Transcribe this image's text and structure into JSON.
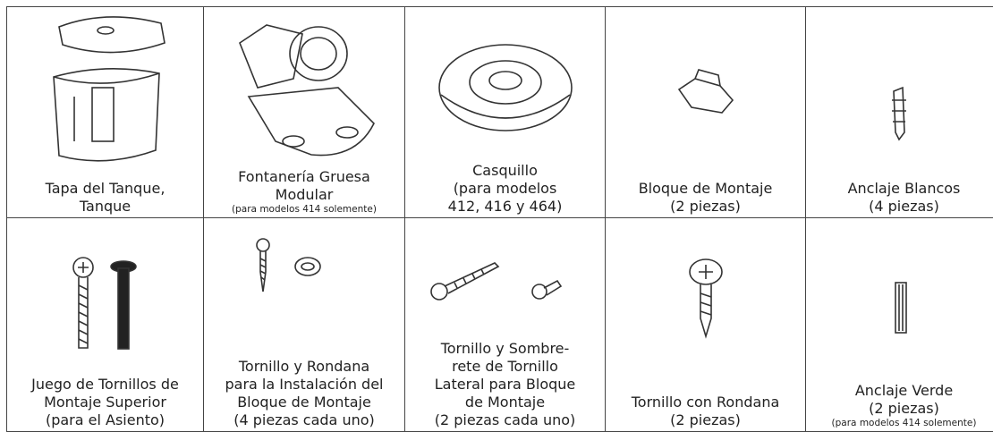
{
  "table": {
    "rows": [
      [
        {
          "lines": [
            "Tapa del Tanque,",
            "Tanque"
          ]
        },
        {
          "lines": [
            "Fontanería Gruesa",
            "Modular"
          ],
          "note": "(para modelos 414 solemente)"
        },
        {
          "lines": [
            "Casquillo",
            "(para modelos",
            "412, 416 y 464)"
          ]
        },
        {
          "lines": [
            "Bloque de Montaje",
            "(2 piezas)"
          ]
        },
        {
          "lines": [
            "Anclaje Blancos",
            "(4 piezas)"
          ]
        }
      ],
      [
        {
          "lines": [
            "Juego de Tornillos de",
            "Montaje Superior",
            "(para el Asiento)"
          ]
        },
        {
          "lines": [
            "Tornillo y Rondana",
            "para la Instalación del",
            "Bloque de Montaje",
            "(4 piezas cada uno)"
          ]
        },
        {
          "lines": [
            "Tornillo y Sombre-",
            "rete de Tornillo",
            "Lateral para Bloque",
            "de Montaje",
            "(2 piezas cada uno)"
          ]
        },
        {
          "lines": [
            "Tornillo con Rondana",
            "(2 piezas)"
          ]
        },
        {
          "lines": [
            "Anclaje Verde",
            "(2 piezas)"
          ],
          "note": "(para modelos 414 solemente)"
        }
      ]
    ]
  }
}
